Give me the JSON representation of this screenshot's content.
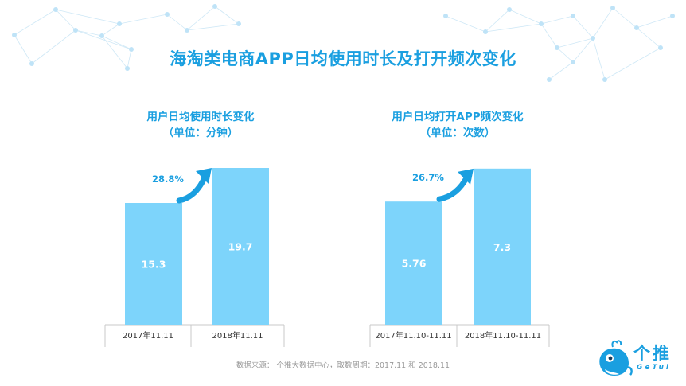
{
  "title": "海淘类电商APP日均使用时长及打开频次变化",
  "footer": "数据来源： 个推大数据中心，取数周期：2017.11 和 2018.11",
  "logo": {
    "name_cn": "个推",
    "name_en": "GeTui"
  },
  "colors": {
    "accent": "#1a9fe0",
    "bar": "#7dd4fb",
    "arrow": "#1a9fe0",
    "axis": "#c8c8c8",
    "value_text": "#ffffff"
  },
  "chart_data": [
    {
      "type": "bar",
      "title": "用户日均使用时长变化",
      "subtitle": "（单位：分钟）",
      "categories": [
        "2017年11.11",
        "2018年11.11"
      ],
      "values": [
        15.3,
        19.7
      ],
      "data_labels": [
        "15.3",
        "19.7"
      ],
      "growth_label": "28.8%",
      "ylim": [
        0,
        21.5
      ],
      "grid": false
    },
    {
      "type": "bar",
      "title": "用户日均打开APP频次变化",
      "subtitle": "（单位：次数）",
      "categories": [
        "2017年11.10-11.11",
        "2018年11.10-11.11"
      ],
      "values": [
        5.76,
        7.3
      ],
      "data_labels": [
        "5.76",
        "7.3"
      ],
      "growth_label": "26.7%",
      "ylim": [
        0,
        8.0
      ],
      "grid": false
    }
  ]
}
